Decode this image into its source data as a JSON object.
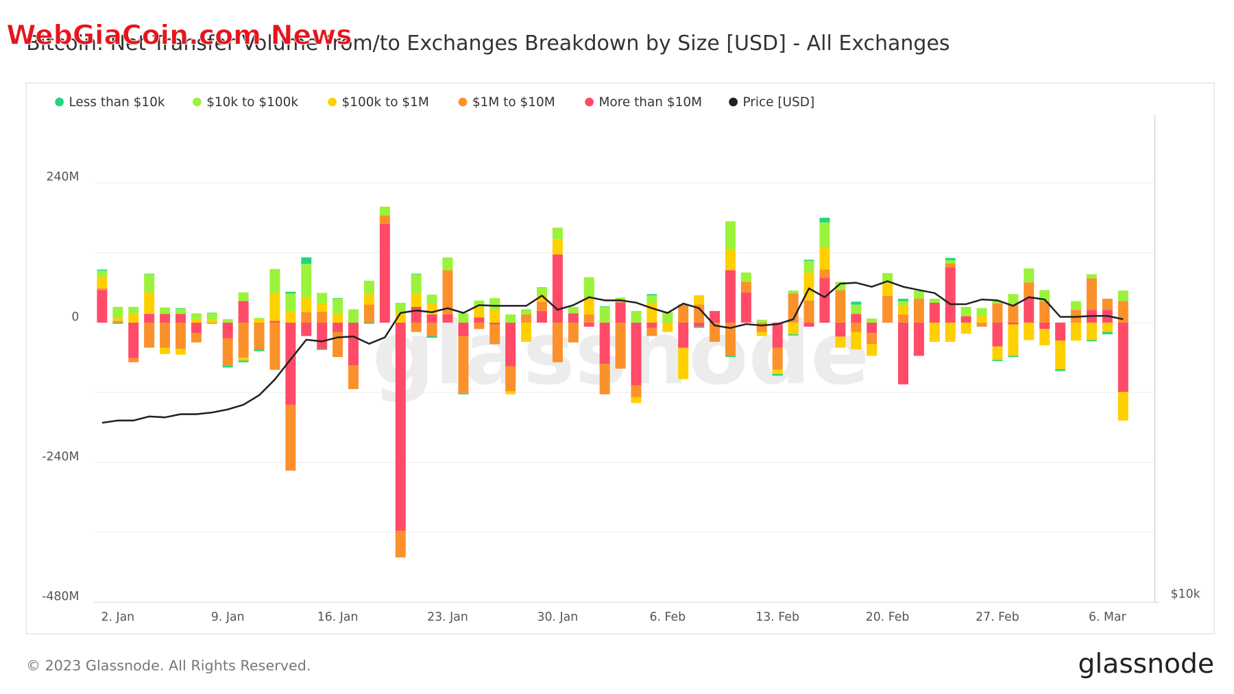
{
  "overlay_text": "WebGiaCoin.com News",
  "footer": "© 2023 Glassnode. All Rights Reserved.",
  "logo": "glassnode",
  "chart_data": {
    "type": "bar",
    "title": "Bitcoin: Net Transfer Volume from/to Exchanges Breakdown by Size [USD] - All Exchanges",
    "watermark": "glassnode",
    "x": [
      null,
      "2. Jan",
      null,
      null,
      null,
      null,
      null,
      null,
      "9. Jan",
      null,
      null,
      null,
      null,
      null,
      null,
      "16. Jan",
      null,
      null,
      null,
      null,
      null,
      null,
      "23. Jan",
      null,
      null,
      null,
      null,
      null,
      null,
      "30. Jan",
      null,
      null,
      null,
      null,
      null,
      null,
      "6. Feb",
      null,
      null,
      null,
      null,
      null,
      null,
      "13. Feb",
      null,
      null,
      null,
      null,
      null,
      null,
      "20. Feb",
      null,
      null,
      null,
      null,
      null,
      null,
      "27. Feb",
      null,
      null,
      null,
      null,
      null,
      null,
      "6. Mar",
      null
    ],
    "series": [
      {
        "name": "Less than $10k",
        "color": "#1fd77f",
        "values": [
          2,
          -2,
          0,
          1,
          0,
          1,
          0,
          1,
          -3,
          -3,
          -3,
          0,
          3,
          11,
          -2,
          1,
          0,
          -2,
          0,
          0,
          1,
          -3,
          0,
          -2,
          0,
          0,
          0,
          0,
          0,
          0,
          0,
          0,
          1,
          0,
          0,
          2,
          0,
          0,
          -2,
          0,
          -2,
          0,
          0,
          -3,
          -2,
          2,
          8,
          0,
          5,
          0,
          0,
          4,
          0,
          0,
          4,
          0,
          0,
          -2,
          -2,
          0,
          0,
          -3,
          0,
          -2,
          -4,
          0
        ]
      },
      {
        "name": "$10k to $100k",
        "color": "#9bf23b",
        "values": [
          10,
          19,
          11,
          31,
          11,
          9,
          10,
          12,
          6,
          15,
          3,
          41,
          30,
          57,
          18,
          26,
          23,
          23,
          15,
          16,
          33,
          15,
          22,
          16,
          11,
          20,
          14,
          9,
          14,
          20,
          11,
          34,
          27,
          8,
          20,
          13,
          18,
          0,
          0,
          0,
          49,
          16,
          5,
          0,
          5,
          20,
          43,
          14,
          16,
          7,
          16,
          7,
          14,
          7,
          5,
          16,
          14,
          4,
          18,
          24,
          19,
          0,
          15,
          7,
          0,
          18
        ]
      },
      {
        "name": "$100k to $1M",
        "color": "#ffd000",
        "values": [
          20,
          5,
          16,
          37,
          -11,
          -10,
          6,
          4,
          0,
          -5,
          5,
          48,
          20,
          26,
          14,
          15,
          0,
          18,
          0,
          18,
          23,
          19,
          0,
          0,
          18,
          22,
          -5,
          -33,
          11,
          26,
          0,
          30,
          0,
          0,
          -10,
          34,
          -16,
          -54,
          16,
          0,
          35,
          0,
          -7,
          -7,
          -20,
          48,
          38,
          -19,
          -30,
          -20,
          23,
          16,
          0,
          -33,
          -33,
          -19,
          11,
          -23,
          -54,
          -30,
          -28,
          -49,
          -31,
          -30,
          -16,
          -49
        ]
      },
      {
        "name": "$1M to $10M",
        "color": "#fb912b",
        "values": [
          3,
          3,
          -7,
          -43,
          -43,
          -45,
          -16,
          -2,
          -47,
          -60,
          -46,
          -81,
          -113,
          18,
          19,
          -43,
          -41,
          31,
          14,
          -46,
          -16,
          -23,
          76,
          -98,
          -11,
          -34,
          -43,
          14,
          16,
          -68,
          -34,
          14,
          -52,
          -79,
          -20,
          -14,
          0,
          31,
          31,
          -33,
          -57,
          18,
          -16,
          -38,
          50,
          38,
          14,
          56,
          -16,
          -19,
          46,
          14,
          41,
          0,
          7,
          0,
          -7,
          33,
          31,
          27,
          37,
          0,
          22,
          54,
          19,
          37
        ]
      },
      {
        "name": "More than $10M",
        "color": "#ff4b68",
        "values": [
          56,
          0,
          -61,
          15,
          15,
          15,
          -18,
          0,
          -27,
          37,
          0,
          3,
          -141,
          -23,
          -45,
          -16,
          -73,
          0,
          170,
          -357,
          27,
          14,
          14,
          -23,
          9,
          -3,
          -75,
          0,
          20,
          117,
          16,
          -7,
          -71,
          35,
          -108,
          -9,
          0,
          -43,
          -7,
          20,
          90,
          52,
          0,
          -43,
          0,
          -7,
          77,
          -24,
          15,
          -18,
          0,
          -106,
          -57,
          34,
          95,
          11,
          0,
          -41,
          -3,
          42,
          -11,
          -31,
          0,
          22,
          22,
          -119
        ]
      },
      {
        "name": "Price [USD]",
        "color": "#222222",
        "type": "line",
        "axis": "y2",
        "values": [
          16610,
          16720,
          16720,
          16910,
          16870,
          17020,
          17020,
          17100,
          17250,
          17480,
          17960,
          18780,
          19870,
          21010,
          20910,
          21150,
          21200,
          20770,
          21150,
          22660,
          22820,
          22710,
          22970,
          22660,
          23170,
          23120,
          23120,
          23120,
          23800,
          22870,
          23170,
          23690,
          23480,
          23480,
          23330,
          22970,
          22660,
          23270,
          22970,
          21870,
          21720,
          21960,
          21870,
          21960,
          22260,
          24290,
          23690,
          24620,
          24680,
          24400,
          24790,
          24400,
          24180,
          23970,
          23230,
          23230,
          23540,
          23480,
          23120,
          23690,
          23540,
          22410,
          22410,
          22470,
          22470,
          22260
        ]
      }
    ],
    "ylim": [
      -480,
      357
    ],
    "yticks": [
      {
        "value": -480,
        "label": "-480M"
      },
      {
        "value": -240,
        "label": "-240M"
      },
      {
        "value": 0,
        "label": "0"
      },
      {
        "value": 240,
        "label": "240M"
      }
    ],
    "minor_yticks": [
      -360,
      -120,
      120
    ],
    "y2lim": [
      10000,
      39700
    ],
    "y2ticks": [
      {
        "value": 10000,
        "label": "$10k"
      }
    ],
    "y2log": true,
    "grid": true,
    "legend": "top-left"
  }
}
